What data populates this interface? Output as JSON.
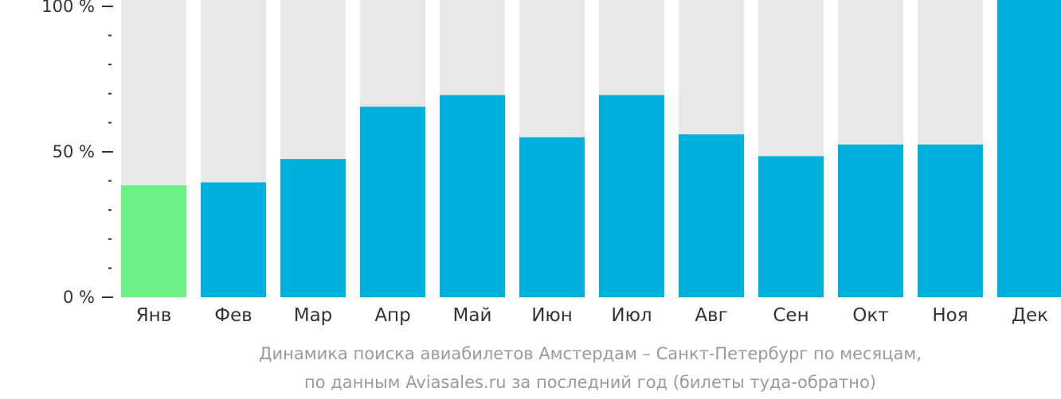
{
  "chart_data": {
    "type": "bar",
    "categories": [
      "Янв",
      "Фев",
      "Мар",
      "Апр",
      "Май",
      "Июн",
      "Июл",
      "Авг",
      "Сен",
      "Окт",
      "Ноя",
      "Дек"
    ],
    "values": [
      38.5,
      39.5,
      47.5,
      65.5,
      69.5,
      55,
      69.5,
      56,
      48.5,
      52.5,
      52.5,
      100
    ],
    "max_value": 100,
    "yticks": [
      {
        "value": 0,
        "label": "0 %"
      },
      {
        "value": 50,
        "label": "50 %"
      },
      {
        "value": 100,
        "label": "100 %"
      }
    ],
    "minor_tick_step": 10,
    "ylim": [
      0,
      100
    ],
    "highlight_index": 0,
    "colors": {
      "bar": "#00b0dc",
      "highlight": "#6df085",
      "background_bar": "#e8e8e8",
      "axis": "#333333"
    },
    "caption": [
      "Динамика поиска авиабилетов Амстердам – Санкт-Петербург по месяцам,",
      "по данным Aviasales.ru за последний год (билеты туда-обратно)"
    ],
    "grid": false,
    "legend": "none"
  }
}
